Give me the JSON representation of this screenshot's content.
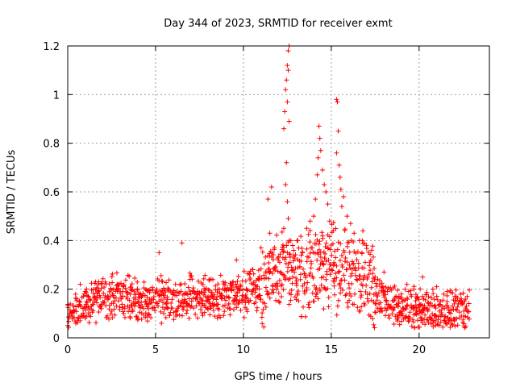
{
  "colors": {
    "series": "#ff0000",
    "grid": "#a0a0a0",
    "axis": "#000000"
  },
  "chart_data": {
    "type": "scatter",
    "title": "Day 344 of 2023, SRMTID for receiver exmt",
    "xlabel": "GPS time / hours",
    "ylabel": "SRMTID / TECUs",
    "xlim": [
      0,
      24
    ],
    "ylim": [
      0,
      1.2
    ],
    "xticks": [
      0,
      5,
      10,
      15,
      20
    ],
    "xtick_labels": [
      "0",
      "5",
      "10",
      "15",
      "20"
    ],
    "yticks": [
      0,
      0.2,
      0.4,
      0.6,
      0.8,
      1.0,
      1.2
    ],
    "ytick_labels": [
      "0",
      "0.2",
      "0.4",
      "0.6",
      "0.8",
      "1",
      "1.2"
    ],
    "grid": true,
    "marker": "+",
    "series": [
      {
        "name": "SRMTID",
        "sampling_hours": 0.05,
        "x_start": 0.0,
        "x_end": 22.9,
        "baseline_knots": [
          [
            0,
            0.1
          ],
          [
            1,
            0.13
          ],
          [
            2,
            0.17
          ],
          [
            3,
            0.18
          ],
          [
            4,
            0.15
          ],
          [
            5,
            0.16
          ],
          [
            6,
            0.16
          ],
          [
            7,
            0.17
          ],
          [
            8,
            0.16
          ],
          [
            9,
            0.18
          ],
          [
            10,
            0.18
          ],
          [
            11,
            0.22
          ],
          [
            12,
            0.3
          ],
          [
            12.5,
            0.32
          ],
          [
            13,
            0.22
          ],
          [
            14,
            0.3
          ],
          [
            15,
            0.3
          ],
          [
            16,
            0.27
          ],
          [
            17,
            0.24
          ],
          [
            18,
            0.15
          ],
          [
            19,
            0.13
          ],
          [
            20,
            0.11
          ],
          [
            21,
            0.11
          ],
          [
            22,
            0.11
          ],
          [
            22.9,
            0.11
          ]
        ],
        "highlights": [
          {
            "x": 6.5,
            "y": 0.39
          },
          {
            "x": 5.2,
            "y": 0.35
          },
          {
            "x": 9.6,
            "y": 0.32
          },
          {
            "x": 11.4,
            "y": 0.57
          },
          {
            "x": 11.6,
            "y": 0.62
          },
          {
            "x": 12.3,
            "y": 0.86
          },
          {
            "x": 12.35,
            "y": 0.93
          },
          {
            "x": 12.4,
            "y": 1.02
          },
          {
            "x": 12.45,
            "y": 1.06
          },
          {
            "x": 12.5,
            "y": 1.12
          },
          {
            "x": 12.55,
            "y": 1.18
          },
          {
            "x": 12.6,
            "y": 1.2
          },
          {
            "x": 12.55,
            "y": 1.1
          },
          {
            "x": 12.5,
            "y": 0.97
          },
          {
            "x": 12.6,
            "y": 0.89
          },
          {
            "x": 12.45,
            "y": 0.72
          },
          {
            "x": 12.4,
            "y": 0.63
          },
          {
            "x": 12.5,
            "y": 0.56
          },
          {
            "x": 12.55,
            "y": 0.49
          },
          {
            "x": 12.3,
            "y": 0.45
          },
          {
            "x": 12.7,
            "y": 0.4
          },
          {
            "x": 14.3,
            "y": 0.87
          },
          {
            "x": 14.35,
            "y": 0.82
          },
          {
            "x": 14.4,
            "y": 0.77
          },
          {
            "x": 14.25,
            "y": 0.74
          },
          {
            "x": 14.2,
            "y": 0.67
          },
          {
            "x": 14.5,
            "y": 0.69
          },
          {
            "x": 14.6,
            "y": 0.63
          },
          {
            "x": 14.7,
            "y": 0.6
          },
          {
            "x": 14.1,
            "y": 0.57
          },
          {
            "x": 14.0,
            "y": 0.5
          },
          {
            "x": 14.8,
            "y": 0.55
          },
          {
            "x": 14.9,
            "y": 0.48
          },
          {
            "x": 13.8,
            "y": 0.48
          },
          {
            "x": 15.3,
            "y": 0.98
          },
          {
            "x": 15.35,
            "y": 0.97
          },
          {
            "x": 15.4,
            "y": 0.85
          },
          {
            "x": 15.3,
            "y": 0.76
          },
          {
            "x": 15.45,
            "y": 0.71
          },
          {
            "x": 15.5,
            "y": 0.66
          },
          {
            "x": 15.55,
            "y": 0.61
          },
          {
            "x": 15.7,
            "y": 0.58
          },
          {
            "x": 15.6,
            "y": 0.54
          },
          {
            "x": 15.9,
            "y": 0.5
          },
          {
            "x": 16.1,
            "y": 0.47
          },
          {
            "x": 16.3,
            "y": 0.43
          },
          {
            "x": 16.6,
            "y": 0.4
          },
          {
            "x": 17.0,
            "y": 0.38
          },
          {
            "x": 17.3,
            "y": 0.36
          },
          {
            "x": 11.0,
            "y": 0.37
          },
          {
            "x": 11.5,
            "y": 0.43
          },
          {
            "x": 13.1,
            "y": 0.4
          },
          {
            "x": 13.6,
            "y": 0.45
          },
          {
            "x": 16.8,
            "y": 0.44
          },
          {
            "x": 18.0,
            "y": 0.27
          },
          {
            "x": 19.7,
            "y": 0.2
          },
          {
            "x": 20.2,
            "y": 0.25
          },
          {
            "x": 21.0,
            "y": 0.21
          },
          {
            "x": 21.6,
            "y": 0.19
          },
          {
            "x": 22.4,
            "y": 0.16
          }
        ]
      }
    ]
  }
}
